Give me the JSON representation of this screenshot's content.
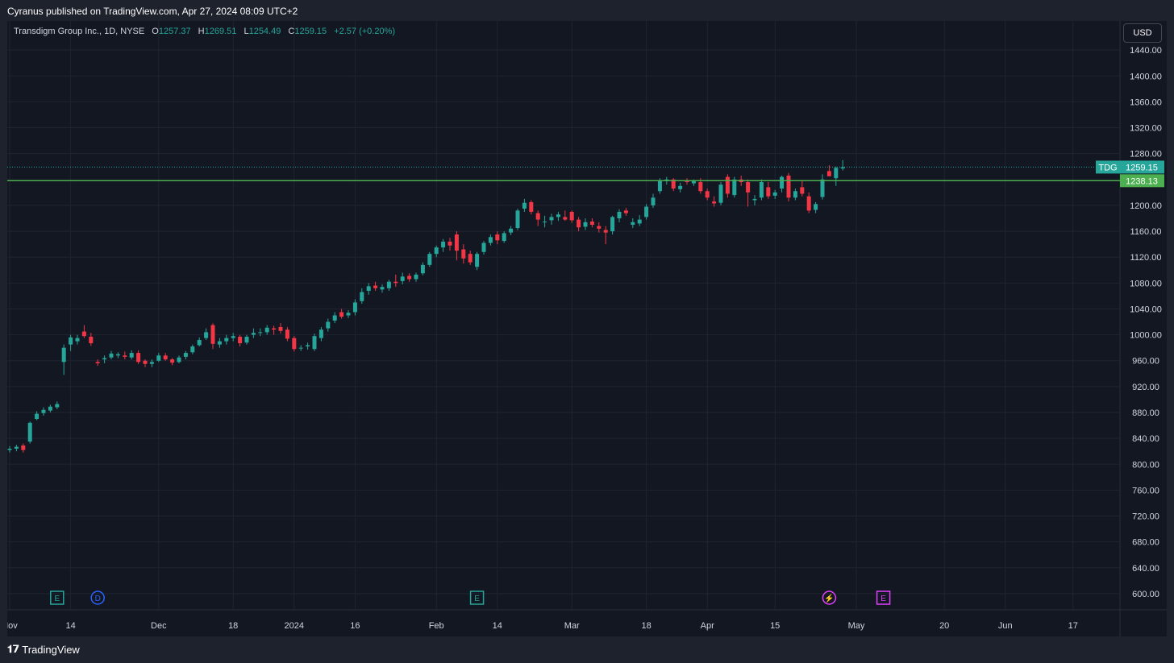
{
  "header": {
    "published": "Cyranus published on TradingView.com, Apr 27, 2024 08:09 UTC+2"
  },
  "legend": {
    "instrument": "Transdigm Group Inc., 1D, NYSE",
    "o_label": "O",
    "o_value": "1257.37",
    "h_label": "H",
    "h_value": "1269.51",
    "l_label": "L",
    "l_value": "1254.49",
    "c_label": "C",
    "c_value": "1259.15",
    "change": "+2.57 (+0.20%)"
  },
  "currency_button": "USD",
  "footer": {
    "brand": "TradingView"
  },
  "colors": {
    "up": "#26a69a",
    "down": "#f23645",
    "level_line": "#4caf50",
    "background": "#131722",
    "grid": "#1e222d"
  },
  "chart_data": {
    "type": "candlestick",
    "symbol": "TDG",
    "last_price": 1259.15,
    "last_price_label": "1259.15",
    "symbol_tag": "TDG",
    "horizontal_level": 1238.13,
    "horizontal_level_label": "1238.13",
    "ylim": [
      580,
      1480
    ],
    "y_ticks": [
      "1440.00",
      "1400.00",
      "1360.00",
      "1320.00",
      "1280.00",
      "1200.00",
      "1160.00",
      "1120.00",
      "1080.00",
      "1040.00",
      "1000.00",
      "960.00",
      "920.00",
      "880.00",
      "840.00",
      "800.00",
      "760.00",
      "720.00",
      "680.00",
      "640.00",
      "600.00"
    ],
    "x_ticks": [
      {
        "label": "Nov",
        "index": 0
      },
      {
        "label": "14",
        "index": 9
      },
      {
        "label": "Dec",
        "index": 22
      },
      {
        "label": "18",
        "index": 33
      },
      {
        "label": "2024",
        "index": 42
      },
      {
        "label": "16",
        "index": 51
      },
      {
        "label": "Feb",
        "index": 63
      },
      {
        "label": "14",
        "index": 72
      },
      {
        "label": "Mar",
        "index": 83
      },
      {
        "label": "18",
        "index": 94
      },
      {
        "label": "Apr",
        "index": 103
      },
      {
        "label": "15",
        "index": 113
      },
      {
        "label": "May",
        "index": 125
      },
      {
        "label": "20",
        "index": 138
      },
      {
        "label": "Jun",
        "index": 147
      },
      {
        "label": "17",
        "index": 157
      }
    ],
    "events": [
      {
        "type": "E",
        "index": 7,
        "color": "#26a69a"
      },
      {
        "type": "D",
        "index": 13,
        "color": "#2962ff"
      },
      {
        "type": "E",
        "index": 69,
        "color": "#26a69a"
      },
      {
        "type": "⚡",
        "index": 121,
        "color": "#e040fb"
      },
      {
        "type": "E",
        "index": 129,
        "color": "#e040fb"
      }
    ],
    "candles": [
      [
        0,
        822,
        828,
        818,
        824
      ],
      [
        1,
        824,
        830,
        820,
        827
      ],
      [
        2,
        829,
        832,
        818,
        822
      ],
      [
        3,
        835,
        866,
        832,
        864
      ],
      [
        4,
        870,
        882,
        868,
        878
      ],
      [
        5,
        879,
        888,
        875,
        884
      ],
      [
        6,
        883,
        892,
        880,
        889
      ],
      [
        7,
        888,
        897,
        885,
        893
      ],
      [
        8,
        958,
        985,
        938,
        980
      ],
      [
        9,
        985,
        1000,
        975,
        996
      ],
      [
        10,
        990,
        1000,
        985,
        995
      ],
      [
        11,
        1005,
        1015,
        995,
        998
      ],
      [
        12,
        997,
        1003,
        983,
        987
      ],
      [
        13,
        958,
        962,
        952,
        956
      ],
      [
        14,
        962,
        968,
        956,
        964
      ],
      [
        15,
        965,
        975,
        962,
        971
      ],
      [
        16,
        968,
        973,
        964,
        970
      ],
      [
        17,
        968,
        974,
        962,
        966
      ],
      [
        18,
        965,
        976,
        962,
        972
      ],
      [
        19,
        972,
        976,
        955,
        958
      ],
      [
        20,
        960,
        962,
        950,
        955
      ],
      [
        21,
        955,
        962,
        950,
        958
      ],
      [
        22,
        960,
        972,
        958,
        968
      ],
      [
        23,
        968,
        972,
        960,
        962
      ],
      [
        24,
        962,
        964,
        953,
        957
      ],
      [
        25,
        958,
        968,
        956,
        965
      ],
      [
        26,
        966,
        975,
        962,
        972
      ],
      [
        27,
        973,
        985,
        970,
        982
      ],
      [
        28,
        984,
        996,
        982,
        992
      ],
      [
        29,
        995,
        1010,
        992,
        1004
      ],
      [
        30,
        1015,
        1018,
        978,
        986
      ],
      [
        31,
        985,
        995,
        980,
        990
      ],
      [
        32,
        990,
        1000,
        985,
        995
      ],
      [
        33,
        995,
        1003,
        990,
        998
      ],
      [
        34,
        997,
        1000,
        982,
        987
      ],
      [
        35,
        988,
        1000,
        985,
        997
      ],
      [
        36,
        1000,
        1010,
        995,
        1003
      ],
      [
        37,
        1003,
        1010,
        998,
        1004
      ],
      [
        38,
        1004,
        1015,
        1000,
        1011
      ],
      [
        39,
        1010,
        1014,
        1000,
        1008
      ],
      [
        40,
        1012,
        1018,
        1002,
        1006
      ],
      [
        41,
        1008,
        1012,
        990,
        994
      ],
      [
        42,
        995,
        998,
        974,
        978
      ],
      [
        43,
        980,
        984,
        975,
        980
      ],
      [
        44,
        982,
        988,
        977,
        984
      ],
      [
        45,
        978,
        1002,
        975,
        998
      ],
      [
        46,
        995,
        1012,
        990,
        1008
      ],
      [
        47,
        1010,
        1025,
        1005,
        1020
      ],
      [
        48,
        1022,
        1035,
        1018,
        1030
      ],
      [
        49,
        1035,
        1040,
        1025,
        1028
      ],
      [
        50,
        1030,
        1038,
        1026,
        1034
      ],
      [
        51,
        1035,
        1055,
        1030,
        1050
      ],
      [
        52,
        1052,
        1072,
        1048,
        1066
      ],
      [
        53,
        1068,
        1080,
        1062,
        1075
      ],
      [
        54,
        1076,
        1082,
        1068,
        1072
      ],
      [
        55,
        1070,
        1078,
        1065,
        1074
      ],
      [
        56,
        1072,
        1085,
        1068,
        1082
      ],
      [
        57,
        1082,
        1093,
        1074,
        1080
      ],
      [
        58,
        1083,
        1096,
        1078,
        1090
      ],
      [
        59,
        1091,
        1095,
        1082,
        1086
      ],
      [
        60,
        1086,
        1096,
        1082,
        1093
      ],
      [
        61,
        1095,
        1112,
        1092,
        1108
      ],
      [
        62,
        1108,
        1128,
        1105,
        1125
      ],
      [
        63,
        1125,
        1138,
        1120,
        1135
      ],
      [
        64,
        1135,
        1148,
        1128,
        1144
      ],
      [
        65,
        1144,
        1150,
        1130,
        1138
      ],
      [
        66,
        1155,
        1160,
        1115,
        1130
      ],
      [
        67,
        1132,
        1140,
        1110,
        1118
      ],
      [
        68,
        1125,
        1130,
        1108,
        1112
      ],
      [
        69,
        1105,
        1128,
        1100,
        1125
      ],
      [
        70,
        1128,
        1145,
        1124,
        1142
      ],
      [
        71,
        1142,
        1155,
        1138,
        1151
      ],
      [
        72,
        1155,
        1160,
        1140,
        1146
      ],
      [
        73,
        1145,
        1160,
        1142,
        1157
      ],
      [
        74,
        1158,
        1168,
        1154,
        1164
      ],
      [
        75,
        1165,
        1195,
        1162,
        1192
      ],
      [
        76,
        1195,
        1210,
        1190,
        1204
      ],
      [
        77,
        1205,
        1208,
        1186,
        1190
      ],
      [
        78,
        1188,
        1192,
        1168,
        1178
      ],
      [
        79,
        1174,
        1184,
        1166,
        1175
      ],
      [
        80,
        1177,
        1187,
        1170,
        1182
      ],
      [
        81,
        1182,
        1190,
        1176,
        1186
      ],
      [
        82,
        1182,
        1192,
        1176,
        1178
      ],
      [
        83,
        1190,
        1192,
        1173,
        1177
      ],
      [
        84,
        1178,
        1182,
        1160,
        1166
      ],
      [
        85,
        1167,
        1180,
        1162,
        1174
      ],
      [
        86,
        1175,
        1180,
        1166,
        1170
      ],
      [
        87,
        1168,
        1174,
        1158,
        1164
      ],
      [
        88,
        1162,
        1168,
        1140,
        1158
      ],
      [
        89,
        1160,
        1184,
        1155,
        1182
      ],
      [
        90,
        1180,
        1194,
        1174,
        1190
      ],
      [
        91,
        1192,
        1196,
        1184,
        1188
      ],
      [
        92,
        1170,
        1180,
        1165,
        1174
      ],
      [
        93,
        1172,
        1185,
        1168,
        1178
      ],
      [
        94,
        1182,
        1202,
        1178,
        1198
      ],
      [
        95,
        1200,
        1218,
        1196,
        1212
      ],
      [
        96,
        1222,
        1242,
        1218,
        1238
      ],
      [
        97,
        1238,
        1244,
        1232,
        1240
      ],
      [
        98,
        1240,
        1242,
        1222,
        1226
      ],
      [
        99,
        1225,
        1235,
        1220,
        1230
      ],
      [
        100,
        1238,
        1242,
        1232,
        1236
      ],
      [
        101,
        1234,
        1240,
        1230,
        1238
      ],
      [
        102,
        1236,
        1242,
        1218,
        1222
      ],
      [
        103,
        1222,
        1226,
        1208,
        1212
      ],
      [
        104,
        1206,
        1214,
        1198,
        1203
      ],
      [
        105,
        1204,
        1236,
        1200,
        1232
      ],
      [
        106,
        1244,
        1248,
        1212,
        1218
      ],
      [
        107,
        1216,
        1244,
        1212,
        1240
      ],
      [
        108,
        1240,
        1246,
        1230,
        1236
      ],
      [
        109,
        1236,
        1240,
        1198,
        1220
      ],
      [
        110,
        1208,
        1216,
        1200,
        1210
      ],
      [
        111,
        1212,
        1240,
        1208,
        1236
      ],
      [
        112,
        1228,
        1236,
        1210,
        1214
      ],
      [
        113,
        1215,
        1224,
        1210,
        1220
      ],
      [
        114,
        1226,
        1246,
        1220,
        1244
      ],
      [
        115,
        1246,
        1250,
        1206,
        1212
      ],
      [
        116,
        1212,
        1226,
        1208,
        1222
      ],
      [
        117,
        1228,
        1238,
        1214,
        1218
      ],
      [
        118,
        1214,
        1220,
        1188,
        1192
      ],
      [
        119,
        1193,
        1205,
        1188,
        1202
      ],
      [
        120,
        1213,
        1248,
        1209,
        1240
      ],
      [
        121,
        1253,
        1262,
        1245,
        1245
      ],
      [
        122,
        1242,
        1260,
        1230,
        1258
      ],
      [
        123,
        1257,
        1270,
        1254,
        1259
      ]
    ]
  }
}
